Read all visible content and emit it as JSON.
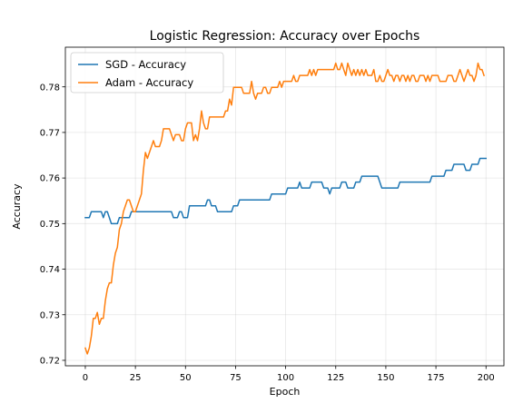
{
  "chart_data": {
    "type": "line",
    "title": "Logistic Regression: Accuracy over Epochs",
    "xlabel": "Epoch",
    "ylabel": "Accuracy",
    "xlim": [
      -9.95,
      208.95
    ],
    "ylim": [
      0.7188,
      0.7887
    ],
    "x_ticks": [
      0,
      25,
      50,
      75,
      100,
      125,
      150,
      175,
      200
    ],
    "y_ticks": [
      0.72,
      0.73,
      0.74,
      0.75,
      0.76,
      0.77,
      0.78
    ],
    "grid": true,
    "legend_position": "top-left",
    "series": [
      {
        "name": "SGD - Accuracy",
        "color": "#1f77b4",
        "points": [
          [
            0,
            0.7513
          ],
          [
            2,
            0.7513
          ],
          [
            3,
            0.7526
          ],
          [
            8,
            0.7526
          ],
          [
            9,
            0.7513
          ],
          [
            10,
            0.7526
          ],
          [
            11,
            0.7526
          ],
          [
            12,
            0.7513
          ],
          [
            13,
            0.75
          ],
          [
            16,
            0.75
          ],
          [
            17,
            0.7513
          ],
          [
            22,
            0.7513
          ],
          [
            23,
            0.7526
          ],
          [
            43,
            0.7526
          ],
          [
            44,
            0.7513
          ],
          [
            46,
            0.7513
          ],
          [
            47,
            0.7526
          ],
          [
            48,
            0.7526
          ],
          [
            49,
            0.7513
          ],
          [
            51,
            0.7513
          ],
          [
            52,
            0.7539
          ],
          [
            60,
            0.7539
          ],
          [
            61,
            0.7552
          ],
          [
            62,
            0.7552
          ],
          [
            63,
            0.7539
          ],
          [
            65,
            0.7539
          ],
          [
            66,
            0.7526
          ],
          [
            73,
            0.7526
          ],
          [
            74,
            0.7539
          ],
          [
            76,
            0.7539
          ],
          [
            77,
            0.7552
          ],
          [
            92,
            0.7552
          ],
          [
            93,
            0.7565
          ],
          [
            100,
            0.7565
          ],
          [
            101,
            0.7578
          ],
          [
            106,
            0.7578
          ],
          [
            107,
            0.7591
          ],
          [
            108,
            0.7578
          ],
          [
            112,
            0.7578
          ],
          [
            113,
            0.7591
          ],
          [
            118,
            0.7591
          ],
          [
            119,
            0.7578
          ],
          [
            121,
            0.7578
          ],
          [
            122,
            0.7565
          ],
          [
            123,
            0.7578
          ],
          [
            127,
            0.7578
          ],
          [
            128,
            0.7591
          ],
          [
            130,
            0.7591
          ],
          [
            131,
            0.7578
          ],
          [
            134,
            0.7578
          ],
          [
            135,
            0.7591
          ],
          [
            137,
            0.7591
          ],
          [
            138,
            0.7604
          ],
          [
            146,
            0.7604
          ],
          [
            147,
            0.7591
          ],
          [
            148,
            0.7578
          ],
          [
            156,
            0.7578
          ],
          [
            157,
            0.7591
          ],
          [
            172,
            0.7591
          ],
          [
            173,
            0.7604
          ],
          [
            179,
            0.7604
          ],
          [
            180,
            0.7617
          ],
          [
            183,
            0.7617
          ],
          [
            184,
            0.763
          ],
          [
            189,
            0.763
          ],
          [
            190,
            0.7617
          ],
          [
            192,
            0.7617
          ],
          [
            193,
            0.763
          ],
          [
            196,
            0.763
          ],
          [
            197,
            0.7643
          ],
          [
            200,
            0.7643
          ]
        ]
      },
      {
        "name": "Adam - Accuracy",
        "color": "#ff7f0e",
        "points": [
          [
            0,
            0.7227
          ],
          [
            1,
            0.7214
          ],
          [
            2,
            0.7227
          ],
          [
            3,
            0.7253
          ],
          [
            4,
            0.7292
          ],
          [
            5,
            0.7292
          ],
          [
            6,
            0.7305
          ],
          [
            7,
            0.7279
          ],
          [
            8,
            0.7292
          ],
          [
            9,
            0.7292
          ],
          [
            10,
            0.7331
          ],
          [
            11,
            0.7357
          ],
          [
            12,
            0.737
          ],
          [
            13,
            0.737
          ],
          [
            14,
            0.7409
          ],
          [
            15,
            0.7435
          ],
          [
            16,
            0.7448
          ],
          [
            17,
            0.7487
          ],
          [
            18,
            0.75
          ],
          [
            19,
            0.7526
          ],
          [
            20,
            0.7539
          ],
          [
            21,
            0.7552
          ],
          [
            22,
            0.7552
          ],
          [
            23,
            0.7539
          ],
          [
            24,
            0.7526
          ],
          [
            25,
            0.7526
          ],
          [
            26,
            0.7539
          ],
          [
            27,
            0.7552
          ],
          [
            28,
            0.7565
          ],
          [
            29,
            0.7617
          ],
          [
            30,
            0.7656
          ],
          [
            31,
            0.7643
          ],
          [
            32,
            0.7656
          ],
          [
            33,
            0.7669
          ],
          [
            34,
            0.7682
          ],
          [
            35,
            0.7669
          ],
          [
            36,
            0.7669
          ],
          [
            37,
            0.7669
          ],
          [
            38,
            0.7682
          ],
          [
            39,
            0.7708
          ],
          [
            40,
            0.7708
          ],
          [
            41,
            0.7708
          ],
          [
            42,
            0.7708
          ],
          [
            43,
            0.7695
          ],
          [
            44,
            0.7682
          ],
          [
            45,
            0.7695
          ],
          [
            46,
            0.7695
          ],
          [
            47,
            0.7695
          ],
          [
            48,
            0.7682
          ],
          [
            49,
            0.7682
          ],
          [
            50,
            0.7708
          ],
          [
            51,
            0.7721
          ],
          [
            52,
            0.7721
          ],
          [
            53,
            0.7721
          ],
          [
            54,
            0.7682
          ],
          [
            55,
            0.7695
          ],
          [
            56,
            0.7682
          ],
          [
            57,
            0.7708
          ],
          [
            58,
            0.7747
          ],
          [
            59,
            0.7721
          ],
          [
            60,
            0.7708
          ],
          [
            61,
            0.7708
          ],
          [
            62,
            0.7734
          ],
          [
            63,
            0.7734
          ],
          [
            64,
            0.7734
          ],
          [
            65,
            0.7734
          ],
          [
            66,
            0.7734
          ],
          [
            67,
            0.7734
          ],
          [
            68,
            0.7734
          ],
          [
            69,
            0.7734
          ],
          [
            70,
            0.7747
          ],
          [
            71,
            0.7747
          ],
          [
            72,
            0.7773
          ],
          [
            73,
            0.776
          ],
          [
            74,
            0.7799
          ],
          [
            75,
            0.7799
          ],
          [
            76,
            0.7799
          ],
          [
            77,
            0.7799
          ],
          [
            78,
            0.7799
          ],
          [
            79,
            0.7786
          ],
          [
            80,
            0.7786
          ],
          [
            81,
            0.7786
          ],
          [
            82,
            0.7786
          ],
          [
            83,
            0.7812
          ],
          [
            84,
            0.7786
          ],
          [
            85,
            0.7773
          ],
          [
            86,
            0.7786
          ],
          [
            87,
            0.7786
          ],
          [
            88,
            0.7786
          ],
          [
            89,
            0.7799
          ],
          [
            90,
            0.7799
          ],
          [
            91,
            0.7786
          ],
          [
            92,
            0.7786
          ],
          [
            93,
            0.7799
          ],
          [
            94,
            0.7799
          ],
          [
            95,
            0.7799
          ],
          [
            96,
            0.7799
          ],
          [
            97,
            0.7812
          ],
          [
            98,
            0.7799
          ],
          [
            99,
            0.7812
          ],
          [
            100,
            0.7812
          ],
          [
            101,
            0.7812
          ],
          [
            102,
            0.7812
          ],
          [
            103,
            0.7812
          ],
          [
            104,
            0.7825
          ],
          [
            105,
            0.7812
          ],
          [
            106,
            0.7812
          ],
          [
            107,
            0.7825
          ],
          [
            108,
            0.7825
          ],
          [
            109,
            0.7825
          ],
          [
            110,
            0.7825
          ],
          [
            111,
            0.7825
          ],
          [
            112,
            0.7838
          ],
          [
            113,
            0.7825
          ],
          [
            114,
            0.7838
          ],
          [
            115,
            0.7825
          ],
          [
            116,
            0.7838
          ],
          [
            117,
            0.7838
          ],
          [
            118,
            0.7838
          ],
          [
            119,
            0.7838
          ],
          [
            120,
            0.7838
          ],
          [
            121,
            0.7838
          ],
          [
            122,
            0.7838
          ],
          [
            123,
            0.7838
          ],
          [
            124,
            0.7838
          ],
          [
            125,
            0.7852
          ],
          [
            126,
            0.7838
          ],
          [
            127,
            0.7838
          ],
          [
            128,
            0.7852
          ],
          [
            129,
            0.7838
          ],
          [
            130,
            0.7825
          ],
          [
            131,
            0.7852
          ],
          [
            132,
            0.7838
          ],
          [
            133,
            0.7825
          ],
          [
            134,
            0.7838
          ],
          [
            135,
            0.7825
          ],
          [
            136,
            0.7838
          ],
          [
            137,
            0.7825
          ],
          [
            138,
            0.7838
          ],
          [
            139,
            0.7825
          ],
          [
            140,
            0.7838
          ],
          [
            141,
            0.7825
          ],
          [
            142,
            0.7825
          ],
          [
            143,
            0.7825
          ],
          [
            144,
            0.7838
          ],
          [
            145,
            0.7812
          ],
          [
            146,
            0.7812
          ],
          [
            147,
            0.7825
          ],
          [
            148,
            0.7812
          ],
          [
            149,
            0.7812
          ],
          [
            150,
            0.7825
          ],
          [
            151,
            0.7838
          ],
          [
            152,
            0.7825
          ],
          [
            153,
            0.7825
          ],
          [
            154,
            0.7812
          ],
          [
            155,
            0.7825
          ],
          [
            156,
            0.7825
          ],
          [
            157,
            0.7812
          ],
          [
            158,
            0.7825
          ],
          [
            159,
            0.7825
          ],
          [
            160,
            0.7812
          ],
          [
            161,
            0.7825
          ],
          [
            162,
            0.7812
          ],
          [
            163,
            0.7825
          ],
          [
            164,
            0.7825
          ],
          [
            165,
            0.7812
          ],
          [
            166,
            0.7812
          ],
          [
            167,
            0.7825
          ],
          [
            168,
            0.7825
          ],
          [
            169,
            0.7825
          ],
          [
            170,
            0.7812
          ],
          [
            171,
            0.7825
          ],
          [
            172,
            0.7812
          ],
          [
            173,
            0.7825
          ],
          [
            174,
            0.7825
          ],
          [
            175,
            0.7825
          ],
          [
            176,
            0.7825
          ],
          [
            177,
            0.7812
          ],
          [
            178,
            0.7812
          ],
          [
            179,
            0.7812
          ],
          [
            180,
            0.7812
          ],
          [
            181,
            0.7825
          ],
          [
            182,
            0.7825
          ],
          [
            183,
            0.7825
          ],
          [
            184,
            0.7812
          ],
          [
            185,
            0.7812
          ],
          [
            186,
            0.7825
          ],
          [
            187,
            0.7838
          ],
          [
            188,
            0.7825
          ],
          [
            189,
            0.7812
          ],
          [
            190,
            0.7825
          ],
          [
            191,
            0.7838
          ],
          [
            192,
            0.7825
          ],
          [
            193,
            0.7825
          ],
          [
            194,
            0.7812
          ],
          [
            195,
            0.7825
          ],
          [
            196,
            0.7852
          ],
          [
            197,
            0.7838
          ],
          [
            198,
            0.7838
          ],
          [
            199,
            0.7825
          ]
        ]
      }
    ]
  }
}
